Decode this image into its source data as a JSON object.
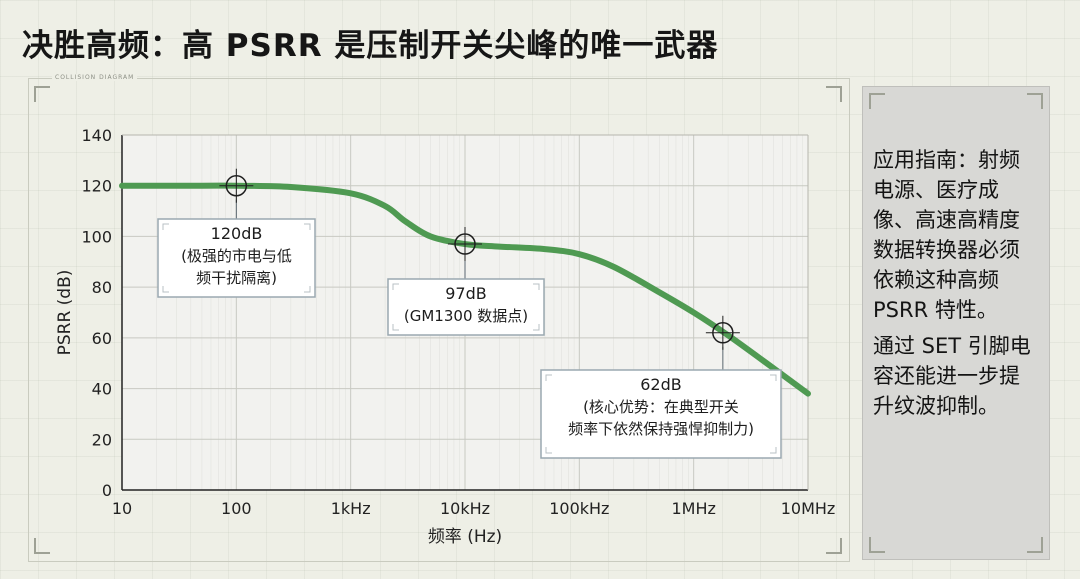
{
  "title": "决胜高频：高 PSRR 是压制开关尖峰的唯一武器",
  "frame_label": "COLLISION DIAGRAM",
  "side_panel": {
    "paragraph1": "应用指南：射频电源、医疗成像、高速高精度数据转换器必须依赖这种高频 PSRR 特性。",
    "paragraph2": "通过 SET 引脚电容还能进一步提升纹波抑制。"
  },
  "colors": {
    "curve": "#4f9a52",
    "axis": "#222222",
    "grid": "#c8c9c2",
    "plot_bg": "#f2f2ef",
    "callout_border": "#9aa8b0",
    "callout_bg": "#ffffff"
  },
  "chart_data": {
    "type": "line",
    "xscale": "log",
    "xlim": [
      10,
      10000000
    ],
    "ylim": [
      0,
      140
    ],
    "xticks": [
      10,
      100,
      1000,
      10000,
      100000,
      1000000,
      10000000
    ],
    "xtick_labels": [
      "10",
      "100",
      "1kHz",
      "10kHz",
      "100kHz",
      "1MHz",
      "10MHz"
    ],
    "yticks": [
      0,
      20,
      40,
      60,
      80,
      100,
      120,
      140
    ],
    "ytick_labels": [
      "0",
      "20",
      "40",
      "60",
      "80",
      "100",
      "120",
      "140"
    ],
    "xlabel": "频率 (Hz)",
    "ylabel": "PSRR (dB)",
    "grid": true,
    "series": [
      {
        "name": "PSRR",
        "x": [
          10,
          50,
          100,
          300,
          1000,
          2000,
          3000,
          5000,
          10000,
          20000,
          50000,
          100000,
          200000,
          500000,
          1000000,
          2000000,
          5000000,
          10000000
        ],
        "y": [
          120,
          120,
          120,
          119.5,
          117,
          112,
          106,
          100,
          97,
          96,
          95,
          93,
          88,
          78,
          70,
          61,
          48,
          38
        ]
      }
    ],
    "annotations": [
      {
        "x": 100,
        "y": 120,
        "lines": [
          "120dB",
          "(极强的市电与低",
          "频干扰隔离)"
        ]
      },
      {
        "x": 10000,
        "y": 97,
        "lines": [
          "97dB",
          "(GM1300 数据点)"
        ]
      },
      {
        "x": 1800000,
        "y": 62,
        "lines": [
          "62dB",
          "(核心优势：在典型开关",
          "频率下依然保持强悍抑制力)"
        ]
      }
    ]
  }
}
